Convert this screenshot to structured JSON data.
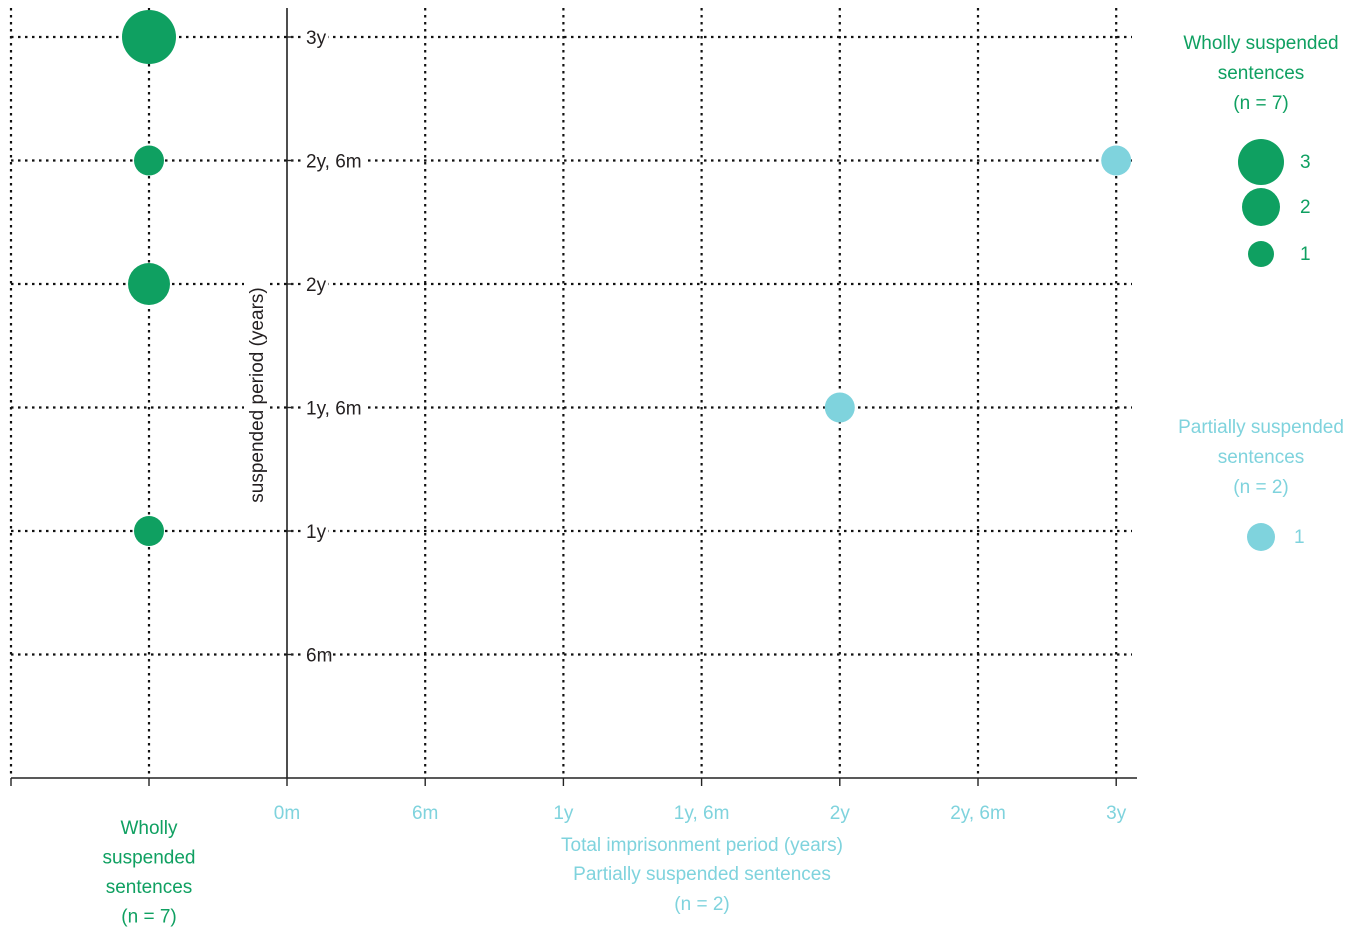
{
  "chart_data": {
    "type": "scatter",
    "ylabel": "suspended period (years)",
    "xlabel": "Total imprisonment period (years)",
    "x_ticks": [
      "0m",
      "6m",
      "1y",
      "1y, 6m",
      "2y",
      "2y, 6m",
      "3y"
    ],
    "y_ticks": [
      "6m",
      "1y",
      "1y, 6m",
      "2y",
      "2y, 6m",
      "3y"
    ],
    "xlim_months": [
      0,
      36
    ],
    "ylim_months": [
      0,
      36
    ],
    "grid": true,
    "legend_position": "right",
    "colors": {
      "wholly": "#0fa061",
      "partially": "#7fd3dd"
    },
    "wholly_label_lines": [
      "Wholly",
      "suspended",
      "sentences",
      "(n = 7)"
    ],
    "partially_label_lines": [
      "Partially suspended sentences",
      "(n = 2)"
    ],
    "series": [
      {
        "name": "Wholly suspended sentences (n = 7)",
        "points": [
          {
            "suspended_months": 36,
            "count": 3
          },
          {
            "suspended_months": 30,
            "count": 1
          },
          {
            "suspended_months": 24,
            "count": 2
          },
          {
            "suspended_months": 12,
            "count": 1
          }
        ]
      },
      {
        "name": "Partially suspended sentences (n = 2)",
        "points": [
          {
            "total_months": 36,
            "suspended_months": 30,
            "count": 1
          },
          {
            "total_months": 24,
            "suspended_months": 18,
            "count": 1
          }
        ]
      }
    ],
    "legend": {
      "wholly": {
        "title_lines": [
          "Wholly suspended",
          "sentences",
          "(n = 7)"
        ],
        "sizes": [
          3,
          2,
          1
        ]
      },
      "partially": {
        "title_lines": [
          "Partially suspended",
          "sentences",
          "(n = 2)"
        ],
        "sizes": [
          1
        ]
      }
    }
  }
}
